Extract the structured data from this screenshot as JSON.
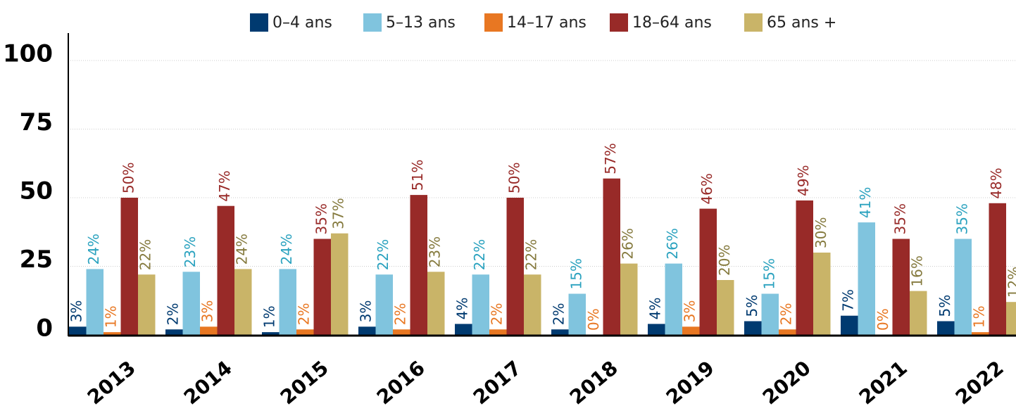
{
  "chart_data": {
    "type": "bar",
    "categories": [
      "2013",
      "2014",
      "2015",
      "2016",
      "2017",
      "2018",
      "2019",
      "2020",
      "2021",
      "2022"
    ],
    "series": [
      {
        "name": "0–4 ans",
        "color": "#003a70",
        "label_color": "#003a70",
        "values": [
          3,
          2,
          1,
          3,
          4,
          2,
          4,
          5,
          7,
          5
        ],
        "value_labels": [
          "3%",
          "2%",
          "1%",
          "3%",
          "4%",
          "2%",
          "4%",
          "5%",
          "7%",
          "5%"
        ]
      },
      {
        "name": "5–13 ans",
        "color": "#80c4de",
        "label_color": "#2aa2bf",
        "values": [
          24,
          23,
          24,
          22,
          22,
          15,
          26,
          15,
          41,
          35
        ],
        "value_labels": [
          "24%",
          "23%",
          "24%",
          "22%",
          "22%",
          "15%",
          "26%",
          "15%",
          "41%",
          "35%"
        ]
      },
      {
        "name": "14–17 ans",
        "color": "#e87722",
        "label_color": "#e87722",
        "values": [
          1,
          3,
          2,
          2,
          2,
          0,
          3,
          2,
          0,
          1
        ],
        "value_labels": [
          "1%",
          "3%",
          "2%",
          "2%",
          "2%",
          "0%",
          "3%",
          "2%",
          "0%",
          "1%"
        ]
      },
      {
        "name": "18–64 ans",
        "color": "#982a28",
        "label_color": "#982a28",
        "values": [
          50,
          47,
          35,
          51,
          50,
          57,
          46,
          49,
          35,
          48
        ],
        "value_labels": [
          "50%",
          "47%",
          "35%",
          "51%",
          "50%",
          "57%",
          "46%",
          "49%",
          "35%",
          "48%"
        ]
      },
      {
        "name": "65 ans +",
        "color": "#c9b468",
        "label_color": "#857a3e",
        "values": [
          22,
          24,
          37,
          23,
          22,
          26,
          20,
          30,
          16,
          12
        ],
        "value_labels": [
          "22%",
          "24%",
          "37%",
          "23%",
          "22%",
          "26%",
          "20%",
          "30%",
          "16%",
          "12%"
        ]
      }
    ],
    "ylim": [
      0,
      110
    ],
    "yticks": [
      0,
      25,
      50,
      75,
      100
    ],
    "grid": true,
    "legend": "top"
  }
}
